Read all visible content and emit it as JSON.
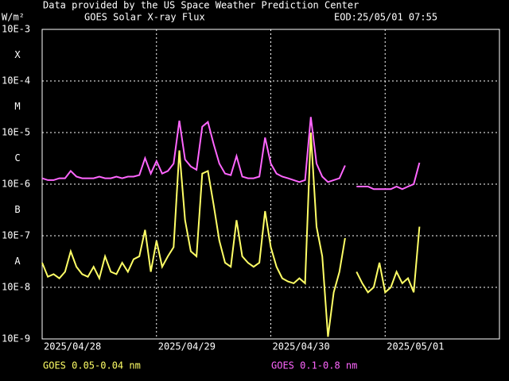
{
  "chart_data": {
    "type": "line",
    "title": "GOES Solar X-ray Flux",
    "subtitle": "Data provided by the US Space Weather Prediction Center",
    "annotation": "EOD:25/05/01 07:55",
    "y_label": "W/m²",
    "classes": [
      "A",
      "B",
      "C",
      "M",
      "X"
    ],
    "log_y": true,
    "grid": true,
    "xlim": [
      0,
      4
    ],
    "xticks": [
      {
        "value": 0,
        "label": "2025/04/28"
      },
      {
        "value": 1,
        "label": "2025/04/29"
      },
      {
        "value": 2,
        "label": "2025/04/30"
      },
      {
        "value": 3,
        "label": "2025/05/01"
      }
    ],
    "ylim": [
      1e-09,
      0.001
    ],
    "yticks": [
      {
        "value": 1e-09,
        "label": "10E-9"
      },
      {
        "value": 1e-08,
        "label": "10E-8"
      },
      {
        "value": 1e-07,
        "label": "10E-7"
      },
      {
        "value": 1e-06,
        "label": "10E-6"
      },
      {
        "value": 1e-05,
        "label": "10E-5"
      },
      {
        "value": 0.0001,
        "label": "10E-4"
      },
      {
        "value": 0.001,
        "label": "10E-3"
      }
    ],
    "x": [
      0,
      0.05,
      0.1,
      0.15,
      0.2,
      0.25,
      0.3,
      0.35,
      0.4,
      0.45,
      0.5,
      0.55,
      0.6,
      0.65,
      0.7,
      0.75,
      0.8,
      0.85,
      0.9,
      0.95,
      1,
      1.05,
      1.1,
      1.15,
      1.2,
      1.25,
      1.3,
      1.35,
      1.4,
      1.45,
      1.5,
      1.55,
      1.6,
      1.65,
      1.7,
      1.75,
      1.8,
      1.85,
      1.9,
      1.95,
      2,
      2.05,
      2.1,
      2.15,
      2.2,
      2.25,
      2.3,
      2.35,
      2.4,
      2.45,
      2.5,
      2.55,
      2.6,
      2.65,
      2.7,
      2.75,
      2.8,
      2.85,
      2.9,
      2.95,
      3,
      3.05,
      3.1,
      3.15,
      3.2,
      3.25,
      3.3
    ],
    "series": [
      {
        "name": "GOES 0.05-0.04 nm",
        "color": "#ffff66",
        "values": [
          3e-08,
          1.6e-08,
          1.8e-08,
          1.5e-08,
          2e-08,
          5e-08,
          2.5e-08,
          1.8e-08,
          1.6e-08,
          2.5e-08,
          1.5e-08,
          4e-08,
          2e-08,
          1.8e-08,
          3e-08,
          2e-08,
          3.5e-08,
          4e-08,
          1.3e-07,
          2e-08,
          8e-08,
          2.5e-08,
          4e-08,
          6e-08,
          4.5e-06,
          2e-07,
          5e-08,
          4e-08,
          1.6e-06,
          1.8e-06,
          4e-07,
          8e-08,
          3e-08,
          2.5e-08,
          2e-07,
          4e-08,
          3e-08,
          2.5e-08,
          3e-08,
          3e-07,
          6e-08,
          2.5e-08,
          1.5e-08,
          1.3e-08,
          1.2e-08,
          1.5e-08,
          1.2e-08,
          1e-05,
          1.5e-07,
          4e-08,
          1.1e-09,
          8e-09,
          2e-08,
          9e-08,
          null,
          2e-08,
          1.2e-08,
          8e-09,
          1e-08,
          3e-08,
          8e-09,
          1e-08,
          2e-08,
          1.2e-08,
          1.5e-08,
          8e-09,
          1.5e-07
        ]
      },
      {
        "name": "GOES 0.1-0.8 nm",
        "color": "#ff66ff",
        "values": [
          1.3e-06,
          1.2e-06,
          1.2e-06,
          1.3e-06,
          1.3e-06,
          1.8e-06,
          1.4e-06,
          1.3e-06,
          1.3e-06,
          1.3e-06,
          1.4e-06,
          1.3e-06,
          1.3e-06,
          1.4e-06,
          1.3e-06,
          1.4e-06,
          1.4e-06,
          1.5e-06,
          3.2e-06,
          1.6e-06,
          2.8e-06,
          1.6e-06,
          1.8e-06,
          2.5e-06,
          1.7e-05,
          3e-06,
          2.2e-06,
          1.9e-06,
          1.3e-05,
          1.6e-05,
          6e-06,
          2.5e-06,
          1.6e-06,
          1.5e-06,
          3.5e-06,
          1.4e-06,
          1.3e-06,
          1.3e-06,
          1.4e-06,
          8e-06,
          2.5e-06,
          1.6e-06,
          1.4e-06,
          1.3e-06,
          1.2e-06,
          1.1e-06,
          1.2e-06,
          2e-05,
          2.5e-06,
          1.4e-06,
          1.1e-06,
          1.2e-06,
          1.3e-06,
          2.3e-06,
          null,
          9e-07,
          9e-07,
          9e-07,
          8e-07,
          8e-07,
          8e-07,
          8e-07,
          9e-07,
          8e-07,
          9e-07,
          1e-06,
          2.6e-06
        ]
      }
    ]
  }
}
